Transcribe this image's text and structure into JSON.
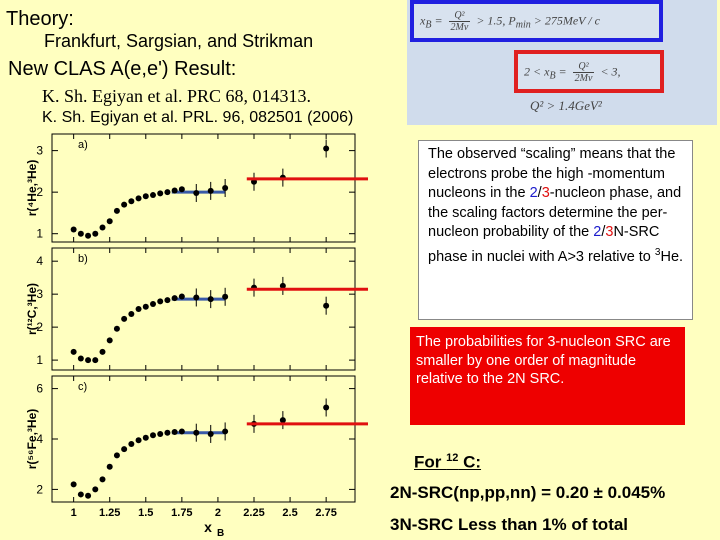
{
  "header": {
    "theory": "Theory:",
    "authors": "Frankfurt, Sargsian, and Strikman",
    "new_result": "New CLAS A(e,e') Result:",
    "ref1": "K. Sh.  Egiyan et al. PRC 68, 014313.",
    "ref2": "K. Sh.  Egiyan et al. PRL. 96, 082501 (2006)"
  },
  "formulas": {
    "cut1_lhs": "x",
    "cut1_sub": "B",
    "cut1_eq": "=",
    "cut1_num": "Q²",
    "cut1_den": "2Mν",
    "cut1_rhs": "> 1.5,   P",
    "cut1_psub": "min",
    "cut1_end": " > 275MeV / c",
    "cut2_lhs": "2 < x",
    "cut2_sub": "B",
    "cut2_eq": "=",
    "cut2_num": "Q²",
    "cut2_den": "2Mν",
    "cut2_rhs": "< 3,",
    "cut3": "Q² > 1.4GeV²"
  },
  "scaling_text": {
    "part1": "The observed “scaling” means that the electrons probe the high -momentum nucleons in the ",
    "n2": "2",
    "slash": "/",
    "n3": "3",
    "part2": "-nucleon phase, and the scaling factors determine the per-nucleon probability of the ",
    "n2b": "2",
    "slashb": "/",
    "n3b": "3",
    "part3": "N-SRC phase in nuclei with A>3 relative to ",
    "he_sup": "3",
    "he": "He."
  },
  "prob_text": "The probabilities for 3-nucleon SRC are smaller by one order of magnitude relative to the 2N SRC.",
  "for12": {
    "pre": "For ",
    "sup": "12",
    "post": " C:"
  },
  "result_line": "2N-SRC(np,pp,nn) = 0.20 ± 0.045%",
  "limit_line": "3N-SRC Less than 1% of total",
  "chart_data": {
    "type": "scatter",
    "xlabel": "x",
    "xlabel_sub": "B",
    "xticks": [
      "1",
      "1.25",
      "1.5",
      "1.75",
      "2",
      "2.25",
      "2.5",
      "2.75"
    ],
    "xlim": [
      0.85,
      2.95
    ],
    "panels": [
      {
        "label": "a)",
        "ylabel": "r(⁴He,³He)",
        "ylim": [
          0.8,
          3.4
        ],
        "yticks": [
          "1",
          "2",
          "3"
        ],
        "x": [
          1.0,
          1.05,
          1.1,
          1.15,
          1.2,
          1.25,
          1.3,
          1.35,
          1.4,
          1.45,
          1.5,
          1.55,
          1.6,
          1.65,
          1.7,
          1.75,
          1.85,
          1.95,
          2.05,
          2.25,
          2.45,
          2.75
        ],
        "y": [
          1.1,
          1.0,
          0.95,
          1.0,
          1.15,
          1.3,
          1.55,
          1.7,
          1.78,
          1.85,
          1.9,
          1.93,
          1.97,
          2.0,
          2.04,
          2.07,
          1.98,
          2.03,
          2.1,
          2.25,
          2.35,
          3.05
        ],
        "plateau": 2.0,
        "red_line": 2.32,
        "red_x": [
          2.2,
          2.55
        ]
      },
      {
        "label": "b)",
        "ylabel": "r(¹²C,³He)",
        "ylim": [
          0.7,
          4.4
        ],
        "yticks": [
          "1",
          "2",
          "3",
          "4"
        ],
        "x": [
          1.0,
          1.05,
          1.1,
          1.15,
          1.2,
          1.25,
          1.3,
          1.35,
          1.4,
          1.45,
          1.5,
          1.55,
          1.6,
          1.65,
          1.7,
          1.75,
          1.85,
          1.95,
          2.05,
          2.25,
          2.45,
          2.75
        ],
        "y": [
          1.25,
          1.05,
          1.0,
          1.0,
          1.25,
          1.6,
          1.95,
          2.25,
          2.4,
          2.55,
          2.62,
          2.7,
          2.78,
          2.82,
          2.88,
          2.93,
          2.9,
          2.85,
          2.92,
          3.2,
          3.25,
          2.65
        ],
        "plateau": 2.85,
        "red_line": 3.15,
        "red_x": [
          2.2,
          2.55
        ]
      },
      {
        "label": "c)",
        "ylabel": "r(⁵⁶Fe,³He)",
        "ylim": [
          1.5,
          6.5
        ],
        "yticks": [
          "2",
          "4",
          "6"
        ],
        "x": [
          1.0,
          1.05,
          1.1,
          1.15,
          1.2,
          1.25,
          1.3,
          1.35,
          1.4,
          1.45,
          1.5,
          1.55,
          1.6,
          1.65,
          1.7,
          1.75,
          1.85,
          1.95,
          2.05,
          2.25,
          2.45,
          2.75
        ],
        "y": [
          2.2,
          1.8,
          1.75,
          2.0,
          2.4,
          2.9,
          3.35,
          3.6,
          3.8,
          3.95,
          4.05,
          4.15,
          4.2,
          4.25,
          4.28,
          4.3,
          4.25,
          4.2,
          4.3,
          4.6,
          4.75,
          5.25
        ],
        "plateau": 4.25,
        "red_line": 4.6,
        "red_x": [
          2.2,
          2.55
        ]
      }
    ]
  },
  "colors": {
    "background": "#ffffc0",
    "plateau_line": "#3a5aa8",
    "red_line": "#e01010",
    "points": "#000000"
  }
}
